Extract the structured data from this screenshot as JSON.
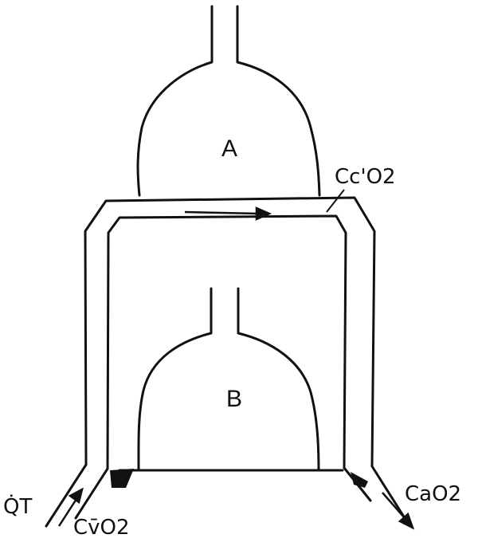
{
  "diagram": {
    "labels": {
      "chamber_a": "A",
      "chamber_b": "B",
      "capillary_o2": "Cc'O2",
      "flow_in": "Q̇T",
      "venous_o2": "Cv̄O2",
      "arterial_o2": "CaO2"
    },
    "colors": {
      "ink": "#111111",
      "background": "#ffffff"
    }
  }
}
